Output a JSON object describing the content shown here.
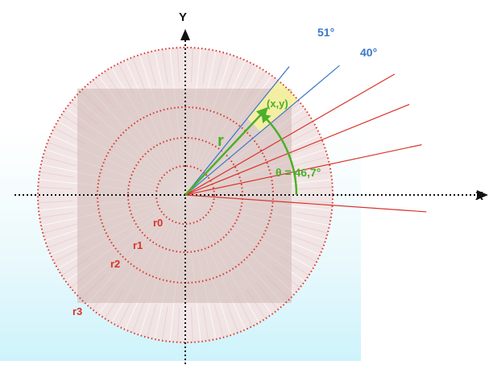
{
  "axes": {
    "x_label": "X",
    "y_label": "Y"
  },
  "rings": [
    {
      "label": "r0"
    },
    {
      "label": "r1"
    },
    {
      "label": "r2"
    },
    {
      "label": "r3"
    }
  ],
  "blue_rays": [
    {
      "angle_deg": 51,
      "label": "51°"
    },
    {
      "angle_deg": 40,
      "label": "40°"
    }
  ],
  "red_ray_angles_deg": [
    30,
    22,
    12,
    -4
  ],
  "point": {
    "label": "(x,y)"
  },
  "radius_label": "r",
  "theta_label": "θ = 46,7°",
  "colors": {
    "ring": "#d8332a",
    "blue_ray": "#3a78c8",
    "red_ray": "#d8332a",
    "green": "#4caf2a",
    "wedge": "#f6f2a0",
    "axis": "#111111"
  }
}
